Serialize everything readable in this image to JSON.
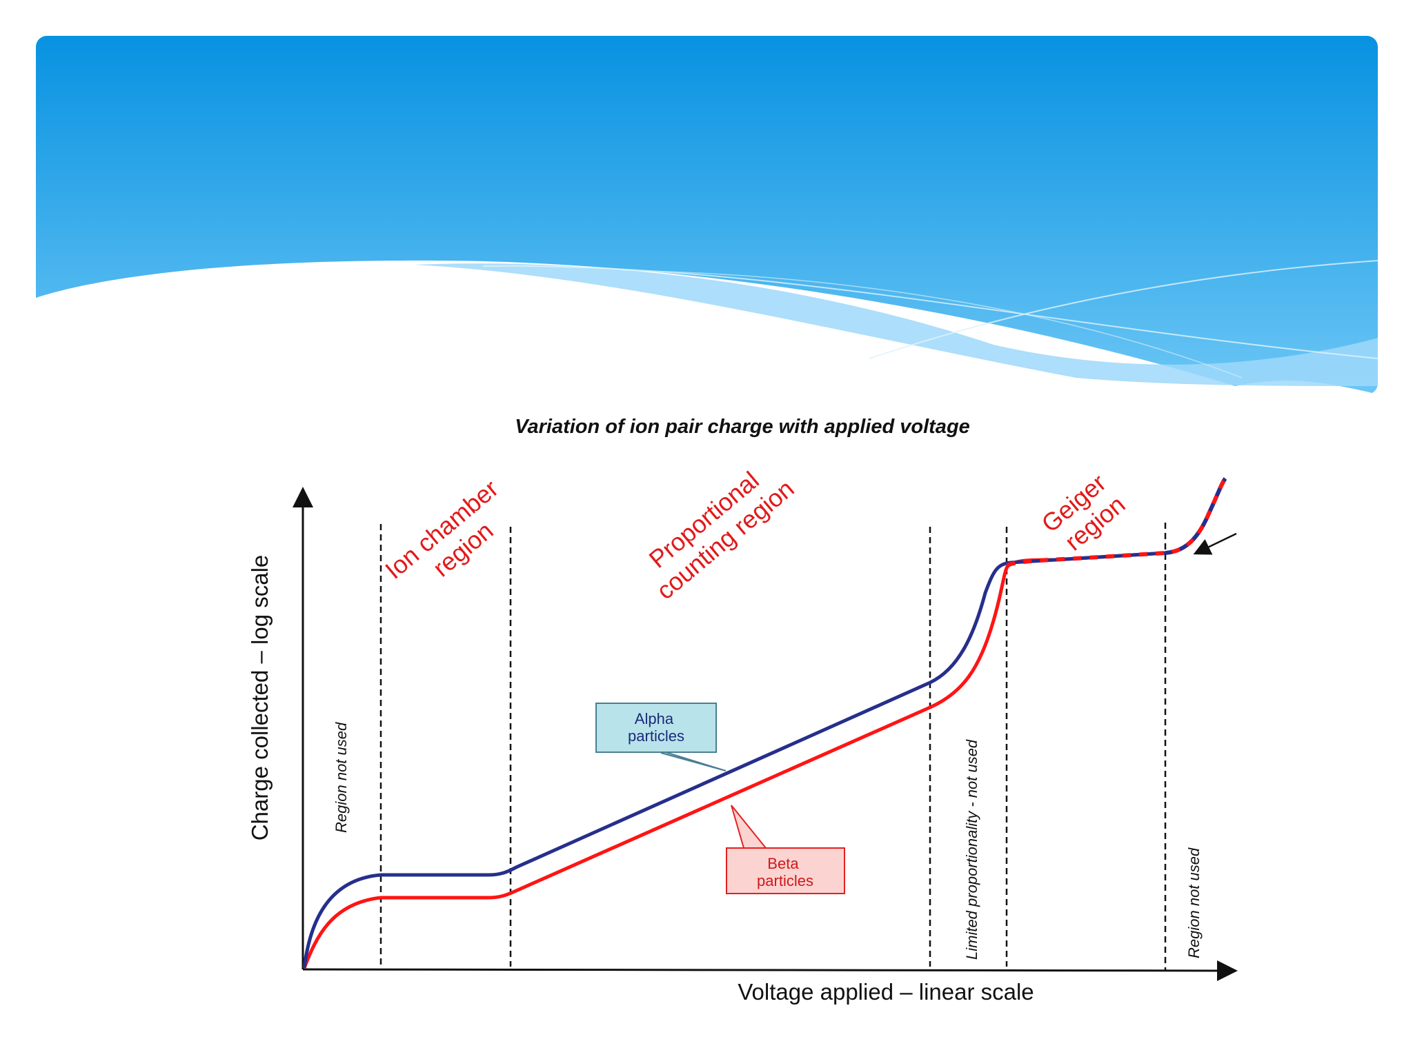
{
  "header": {
    "gradient_top": "#0792e1",
    "gradient_bottom": "#6cc6f5",
    "wave_light": "#9fd8fa"
  },
  "diagram": {
    "title": "Variation of ion pair charge with applied voltage",
    "x_axis_label": "Voltage applied – linear scale",
    "y_axis_label": "Charge collected – log scale",
    "regions": [
      {
        "lines": [
          "Ion chamber",
          "region"
        ]
      },
      {
        "lines": [
          "Proportional",
          "counting region"
        ]
      },
      {
        "lines": [
          "Geiger",
          "region"
        ]
      }
    ],
    "notes": {
      "left_unused": "Region not used",
      "limited": "Limited proportionality - not used",
      "right_unused": "Region not used"
    },
    "callouts": {
      "alpha": {
        "lines": [
          "Alpha",
          "particles"
        ],
        "fill": "#b9e3ea",
        "border": "#4a7e92",
        "text_color": "#1b2a7a"
      },
      "beta": {
        "lines": [
          "Beta",
          "particles"
        ],
        "fill": "#fbd3d1",
        "border": "#e32020",
        "text_color": "#d01818"
      }
    },
    "series_colors": {
      "alpha": "#262f8c",
      "beta": "#ff1414"
    },
    "region_text_color": "#e11a1a"
  }
}
